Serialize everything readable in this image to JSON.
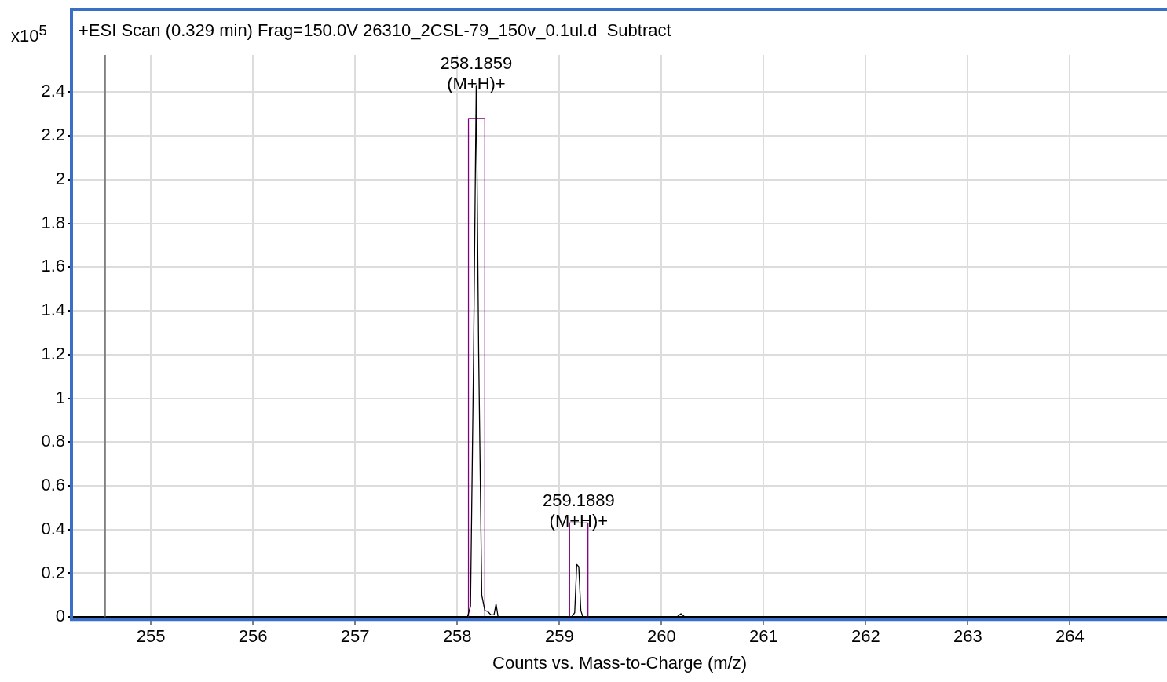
{
  "chart_data": {
    "type": "line",
    "title": "+ESI Scan (0.329 min) Frag=150.0V 26310_2CSL-79_150v_0.1ul.d  Subtract",
    "xlabel": "Counts vs. Mass-to-Charge (m/z)",
    "ylabel": "x10$^{5}$",
    "series": [
      {
        "color": "#000000",
        "x": [
          254.23,
          258.1,
          258.13,
          258.16,
          258.1859,
          258.21,
          258.24,
          258.27,
          258.3,
          258.33,
          258.36,
          258.38,
          258.4,
          259.12,
          259.15,
          259.17,
          259.19,
          259.21,
          259.23,
          260.15,
          260.19,
          260.23,
          264.95
        ],
        "values": [
          0,
          0,
          0.05,
          1.2,
          2.43,
          1.2,
          0.1,
          0.03,
          0.025,
          0.01,
          0.01,
          0.06,
          0,
          0,
          0.02,
          0.24,
          0.23,
          0.03,
          0,
          0,
          0.015,
          0,
          0
        ]
      },
      {
        "color": "#800080",
        "x": [
          258.11,
          258.11,
          258.27,
          258.27
        ],
        "values": [
          0,
          2.28,
          2.28,
          0
        ]
      },
      {
        "color": "#800080",
        "x": [
          259.1,
          259.1,
          259.28,
          259.28
        ],
        "values": [
          0,
          0.43,
          0.43,
          0
        ]
      }
    ],
    "annotations": [
      {
        "text": "258.1859\n(M+H)+",
        "x": 258.1859,
        "y": 2.43
      },
      {
        "text": "259.1889\n(M+H)+",
        "x": 259.1889,
        "y": 0.43
      }
    ],
    "ref_lines": [
      {
        "axis": "x",
        "value": 254.55,
        "color": "#808080"
      }
    ],
    "xlim": [
      254.23,
      264.95
    ],
    "xticks": [
      255,
      256,
      257,
      258,
      259,
      260,
      261,
      262,
      263,
      264
    ],
    "ylim": [
      0,
      2.57
    ],
    "yticks": [
      0,
      0.2,
      0.4,
      0.6,
      0.8,
      1,
      1.2,
      1.4,
      1.6,
      1.8,
      2,
      2.2,
      2.4
    ],
    "grid": true,
    "legend": false,
    "marker": "none",
    "line_style": "solid"
  }
}
